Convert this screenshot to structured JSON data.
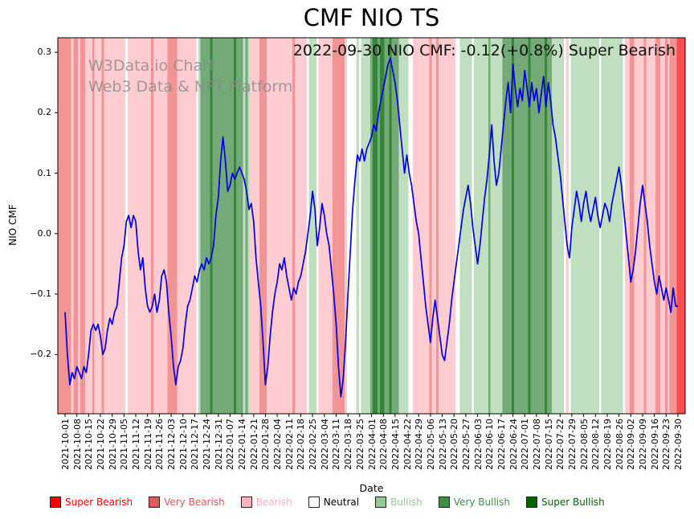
{
  "annotation": "2022-09-30 NIO CMF: -0.12(+0.8%) Super Bearish",
  "watermark": {
    "line1": "W3Data.io Chart",
    "line2": "Web3 Data & NFT Platform"
  },
  "chart_data": {
    "type": "line",
    "title": "CMF NIO TS",
    "xlabel": "Date",
    "ylabel": "NIO CMF",
    "series_name": "NIO CMF",
    "line_color": "#0000dd",
    "grid": false,
    "legend_position": "bottom",
    "ylim": [
      -0.298,
      0.324
    ],
    "y_ticks": [
      0.3,
      0.2,
      0.1,
      0.0,
      -0.1,
      -0.2
    ],
    "y_tick_labels": [
      "0.3",
      "0.2",
      "0.1",
      "0.0",
      "−0.1",
      "−0.2"
    ],
    "x_tick_labels": [
      "2021-10-01",
      "2021-10-08",
      "2021-10-15",
      "2021-10-22",
      "2021-10-29",
      "2021-11-05",
      "2021-11-12",
      "2021-11-19",
      "2021-11-26",
      "2021-12-03",
      "2021-12-10",
      "2021-12-17",
      "2021-12-24",
      "2021-12-31",
      "2022-01-07",
      "2022-01-14",
      "2022-01-21",
      "2022-01-28",
      "2022-02-04",
      "2022-02-11",
      "2022-02-18",
      "2022-02-25",
      "2022-03-04",
      "2022-03-11",
      "2022-03-18",
      "2022-03-25",
      "2022-04-01",
      "2022-04-08",
      "2022-04-15",
      "2022-04-22",
      "2022-04-29",
      "2022-05-06",
      "2022-05-13",
      "2022-05-20",
      "2022-05-27",
      "2022-06-03",
      "2022-06-10",
      "2022-06-17",
      "2022-06-24",
      "2022-07-01",
      "2022-07-08",
      "2022-07-15",
      "2022-07-22",
      "2022-07-29",
      "2022-08-05",
      "2022-08-12",
      "2022-08-19",
      "2022-08-26",
      "2022-09-02",
      "2022-09-09",
      "2022-09-16",
      "2022-09-23",
      "2022-09-30"
    ],
    "values": [
      -0.13,
      -0.2,
      -0.25,
      -0.23,
      -0.24,
      -0.22,
      -0.23,
      -0.24,
      -0.22,
      -0.23,
      -0.2,
      -0.16,
      -0.15,
      -0.16,
      -0.15,
      -0.17,
      -0.2,
      -0.19,
      -0.16,
      -0.14,
      -0.15,
      -0.13,
      -0.12,
      -0.08,
      -0.04,
      -0.02,
      0.02,
      0.03,
      0.01,
      0.03,
      0.02,
      -0.03,
      -0.06,
      -0.04,
      -0.09,
      -0.12,
      -0.13,
      -0.12,
      -0.1,
      -0.13,
      -0.11,
      -0.07,
      -0.06,
      -0.08,
      -0.13,
      -0.17,
      -0.22,
      -0.25,
      -0.22,
      -0.21,
      -0.19,
      -0.15,
      -0.12,
      -0.11,
      -0.09,
      -0.07,
      -0.08,
      -0.06,
      -0.05,
      -0.06,
      -0.04,
      -0.05,
      -0.04,
      -0.02,
      0.03,
      0.06,
      0.12,
      0.16,
      0.12,
      0.07,
      0.08,
      0.1,
      0.09,
      0.1,
      0.11,
      0.1,
      0.09,
      0.07,
      0.04,
      0.05,
      0.02,
      -0.04,
      -0.08,
      -0.12,
      -0.18,
      -0.25,
      -0.22,
      -0.17,
      -0.13,
      -0.1,
      -0.08,
      -0.05,
      -0.06,
      -0.04,
      -0.07,
      -0.09,
      -0.11,
      -0.09,
      -0.1,
      -0.08,
      -0.07,
      -0.05,
      -0.03,
      0.0,
      0.03,
      0.07,
      0.04,
      -0.02,
      0.01,
      0.05,
      0.03,
      0.0,
      -0.02,
      -0.06,
      -0.1,
      -0.15,
      -0.22,
      -0.27,
      -0.24,
      -0.18,
      -0.1,
      -0.03,
      0.04,
      0.09,
      0.13,
      0.12,
      0.14,
      0.12,
      0.14,
      0.15,
      0.16,
      0.18,
      0.17,
      0.2,
      0.22,
      0.24,
      0.26,
      0.28,
      0.29,
      0.27,
      0.25,
      0.22,
      0.18,
      0.14,
      0.1,
      0.13,
      0.1,
      0.08,
      0.05,
      0.02,
      0.0,
      -0.04,
      -0.08,
      -0.12,
      -0.15,
      -0.18,
      -0.14,
      -0.11,
      -0.14,
      -0.17,
      -0.2,
      -0.21,
      -0.18,
      -0.15,
      -0.11,
      -0.08,
      -0.05,
      -0.02,
      0.01,
      0.04,
      0.06,
      0.08,
      0.05,
      0.01,
      -0.02,
      -0.05,
      -0.02,
      0.02,
      0.06,
      0.09,
      0.13,
      0.18,
      0.12,
      0.08,
      0.1,
      0.14,
      0.18,
      0.22,
      0.25,
      0.2,
      0.28,
      0.24,
      0.21,
      0.24,
      0.22,
      0.27,
      0.24,
      0.21,
      0.25,
      0.22,
      0.24,
      0.2,
      0.23,
      0.26,
      0.21,
      0.25,
      0.22,
      0.18,
      0.16,
      0.13,
      0.1,
      0.06,
      0.02,
      -0.02,
      -0.04,
      0.01,
      0.04,
      0.07,
      0.05,
      0.02,
      0.05,
      0.07,
      0.04,
      0.02,
      0.04,
      0.06,
      0.03,
      0.01,
      0.03,
      0.05,
      0.04,
      0.02,
      0.05,
      0.07,
      0.09,
      0.11,
      0.08,
      0.04,
      0.0,
      -0.04,
      -0.08,
      -0.06,
      -0.03,
      0.01,
      0.05,
      0.08,
      0.05,
      0.02,
      -0.02,
      -0.05,
      -0.08,
      -0.1,
      -0.07,
      -0.09,
      -0.11,
      -0.09,
      -0.11,
      -0.13,
      -0.09,
      -0.12,
      -0.12
    ],
    "sentiments": [
      -2,
      -2,
      -2,
      -1,
      -2,
      -2,
      -1,
      -2,
      -2,
      -1,
      -1,
      -1,
      -2,
      -1,
      -1,
      -1,
      -2,
      -1,
      -1,
      -1,
      -1,
      -1,
      -1,
      -1,
      -1,
      -1,
      0,
      -1,
      -1,
      -1,
      -1,
      -1,
      -1,
      -1,
      -1,
      -1,
      -1,
      -2,
      -1,
      -1,
      -1,
      -1,
      -1,
      -1,
      -2,
      -2,
      -2,
      -2,
      -1,
      -1,
      -1,
      -1,
      -1,
      -1,
      -1,
      -1,
      0,
      1,
      2,
      2,
      2,
      2,
      3,
      2,
      2,
      2,
      2,
      2,
      2,
      2,
      2,
      2,
      3,
      2,
      2,
      2,
      1,
      2,
      1,
      -1,
      -1,
      -1,
      -1,
      -2,
      -2,
      -2,
      -1,
      -1,
      -1,
      -1,
      -1,
      -1,
      -1,
      -1,
      -1,
      -1,
      -1,
      -2,
      -1,
      -1,
      -1,
      -1,
      -1,
      0,
      1,
      1,
      1,
      0,
      -1,
      -1,
      -1,
      -1,
      -1,
      -1,
      -2,
      -2,
      -2,
      -2,
      -2,
      -1,
      0,
      0,
      0,
      0,
      1,
      0,
      1,
      1,
      1,
      1,
      2,
      3,
      3,
      2,
      3,
      3,
      2,
      2,
      3,
      2,
      2,
      2,
      1,
      1,
      1,
      1,
      0,
      0,
      -1,
      -1,
      -1,
      -1,
      -1,
      -1,
      -1,
      -2,
      -1,
      -1,
      -2,
      -1,
      -1,
      -1,
      -1,
      -1,
      -1,
      -1,
      0,
      0,
      1,
      1,
      1,
      1,
      1,
      0,
      1,
      1,
      1,
      1,
      1,
      1,
      2,
      1,
      1,
      1,
      1,
      1,
      2,
      2,
      2,
      2,
      3,
      2,
      2,
      2,
      2,
      2,
      2,
      3,
      2,
      2,
      2,
      2,
      2,
      2,
      3,
      2,
      2,
      1,
      1,
      1,
      1,
      1,
      0,
      -1,
      0,
      1,
      1,
      1,
      1,
      1,
      1,
      1,
      1,
      1,
      1,
      1,
      1,
      0,
      1,
      1,
      1,
      1,
      1,
      1,
      1,
      1,
      1,
      0,
      -1,
      -1,
      -2,
      -2,
      -1,
      -1,
      -1,
      -1,
      -2,
      -1,
      -1,
      -1,
      -1,
      -2,
      -2,
      -1,
      -1,
      -2,
      -1,
      -2,
      -2,
      -2,
      -3
    ],
    "sentiment_legend": [
      {
        "code": -3,
        "label": "Super Bearish",
        "color": "#ff0000",
        "band": "#ff4d4d"
      },
      {
        "code": -2,
        "label": "Very Bearish",
        "color": "#e05858",
        "band": "#f09494"
      },
      {
        "code": -1,
        "label": "Bearish",
        "color": "#ffb3bd",
        "band": "#ffccd2"
      },
      {
        "code": 0,
        "label": "Neutral",
        "color": "#ffffff",
        "band": "#ffffff",
        "text": "#000000"
      },
      {
        "code": 1,
        "label": "Bullish",
        "color": "#94c994",
        "band": "#c0dfc0"
      },
      {
        "code": 2,
        "label": "Very Bullish",
        "color": "#3f9142",
        "band": "#74aa77"
      },
      {
        "code": 3,
        "label": "Super Bullish",
        "color": "#006400",
        "band": "#35853a"
      }
    ]
  }
}
